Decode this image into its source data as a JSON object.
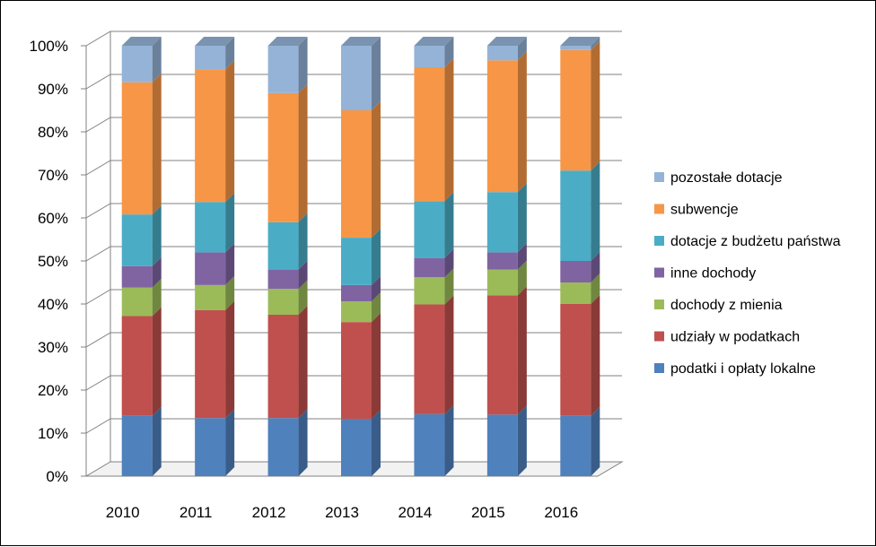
{
  "chart_data": {
    "type": "bar",
    "stacked": true,
    "percent": true,
    "style": "3d-column",
    "categories": [
      "2010",
      "2011",
      "2012",
      "2013",
      "2014",
      "2015",
      "2016"
    ],
    "y_ticks": [
      "0%",
      "10%",
      "20%",
      "30%",
      "40%",
      "50%",
      "60%",
      "70%",
      "80%",
      "90%",
      "100%"
    ],
    "ylim": [
      0,
      100
    ],
    "grid": true,
    "legend_position": "right",
    "series": [
      {
        "name": "podatki i opłaty lokalne",
        "color": "#4F81BD",
        "values": [
          14,
          13.5,
          13.5,
          13.3,
          14.4,
          14.3,
          14
        ]
      },
      {
        "name": "udziały w podatkach",
        "color": "#C0504D",
        "values": [
          23.2,
          25.1,
          24,
          22.5,
          25.5,
          27.7,
          26
        ]
      },
      {
        "name": "dochody z mienia",
        "color": "#9BBB59",
        "values": [
          6.6,
          5.8,
          6,
          4.8,
          6.3,
          6,
          5
        ]
      },
      {
        "name": "inne dochody",
        "color": "#8064A2",
        "values": [
          5,
          7.6,
          4.5,
          3.8,
          4.5,
          4,
          5
        ]
      },
      {
        "name": "dotacje z budżetu państwa",
        "color": "#4BACC6",
        "values": [
          12,
          11.7,
          11,
          11,
          13.2,
          14,
          21
        ]
      },
      {
        "name": "subwencje",
        "color": "#F79646",
        "values": [
          30.7,
          30.8,
          30,
          29.6,
          31.1,
          30.6,
          28
        ]
      },
      {
        "name": "pozostałe dotacje",
        "color": "#95B3D7",
        "values": [
          8.5,
          5.5,
          11,
          15,
          5,
          3.4,
          1
        ]
      }
    ]
  }
}
